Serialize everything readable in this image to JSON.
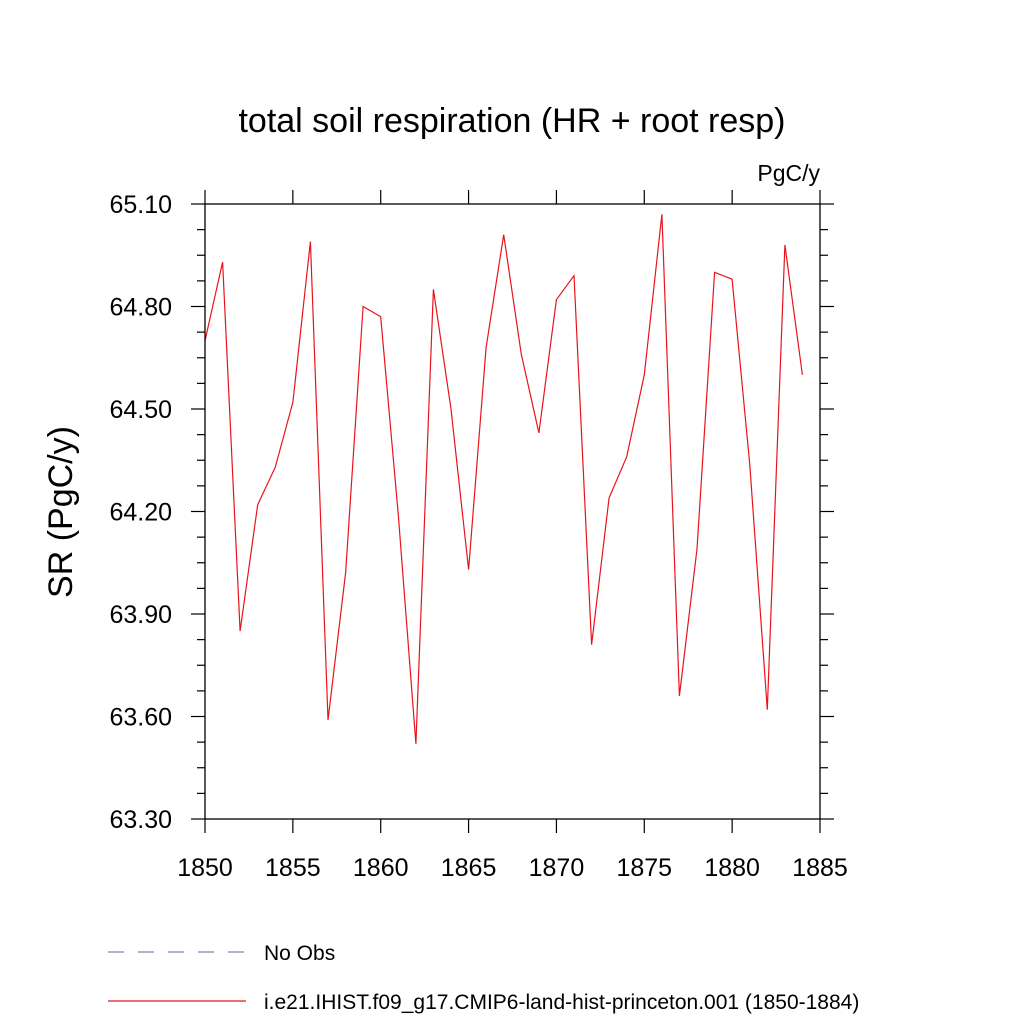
{
  "chart_data": {
    "type": "line",
    "title": "total soil respiration (HR + root resp)",
    "units_label": "PgC/y",
    "xlabel": "",
    "ylabel": "SR  (PgC/y)",
    "xlim": [
      1850,
      1885
    ],
    "ylim": [
      63.3,
      65.1
    ],
    "x_ticks": [
      1850,
      1855,
      1860,
      1865,
      1870,
      1875,
      1880,
      1885
    ],
    "x_tick_labels": [
      "1850",
      "1855",
      "1860",
      "1865",
      "1870",
      "1875",
      "1880",
      "1885"
    ],
    "y_ticks": [
      63.3,
      63.6,
      63.9,
      64.2,
      64.5,
      64.8,
      65.1
    ],
    "y_tick_labels": [
      "63.30",
      "63.60",
      "63.90",
      "64.20",
      "64.50",
      "64.80",
      "65.10"
    ],
    "grid": false,
    "legend_placement": "bottom",
    "legend": [
      {
        "label": "No Obs",
        "style": "dashed",
        "color": "#8a7fb5"
      },
      {
        "label": "i.e21.IHIST.f09_g17.CMIP6-land-hist-princeton.001 (1850-1884)",
        "style": "solid",
        "color": "#e8141c"
      }
    ],
    "series": [
      {
        "name": "i.e21.IHIST.f09_g17.CMIP6-land-hist-princeton.001 (1850-1884)",
        "color": "#e8141c",
        "x": [
          1850,
          1851,
          1852,
          1853,
          1854,
          1855,
          1856,
          1857,
          1858,
          1859,
          1860,
          1861,
          1862,
          1863,
          1864,
          1865,
          1866,
          1867,
          1868,
          1869,
          1870,
          1871,
          1872,
          1873,
          1874,
          1875,
          1876,
          1877,
          1878,
          1879,
          1880,
          1881,
          1882,
          1883,
          1884
        ],
        "y": [
          64.7,
          64.93,
          63.85,
          64.22,
          64.33,
          64.52,
          64.99,
          63.59,
          64.02,
          64.8,
          64.77,
          64.19,
          63.52,
          64.85,
          64.5,
          64.03,
          64.68,
          65.01,
          64.66,
          64.43,
          64.82,
          64.89,
          63.81,
          64.24,
          64.36,
          64.6,
          65.07,
          63.66,
          64.09,
          64.9,
          64.88,
          64.34,
          63.62,
          64.98,
          64.6
        ]
      }
    ]
  }
}
